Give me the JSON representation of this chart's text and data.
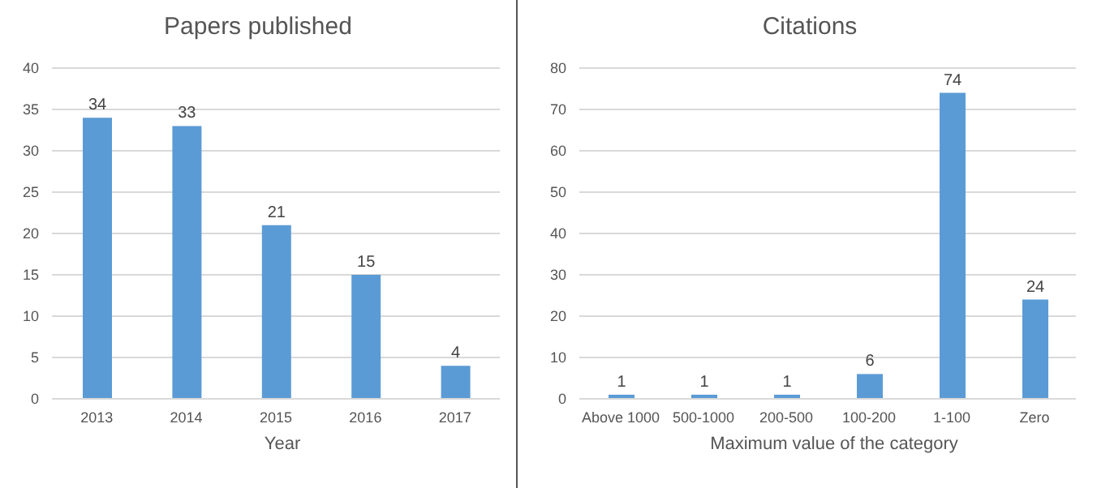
{
  "chart_data": [
    {
      "type": "bar",
      "title": "Papers published",
      "xlabel": "Year",
      "categories": [
        "2013",
        "2014",
        "2015",
        "2016",
        "2017"
      ],
      "values": [
        34,
        33,
        21,
        15,
        4
      ],
      "color": "#5b9bd5",
      "ylim": [
        0,
        40
      ],
      "yticks": [
        0,
        5,
        10,
        15,
        20,
        25,
        30,
        35,
        40
      ],
      "grid": "y",
      "data_labels": true
    },
    {
      "type": "bar",
      "title": "Citations",
      "xlabel": "Maximum value of the category",
      "categories": [
        "Above 1000",
        "500-1000",
        "200-500",
        "100-200",
        "1-100",
        "Zero"
      ],
      "values": [
        1,
        1,
        1,
        6,
        74,
        24
      ],
      "color": "#5b9bd5",
      "ylim": [
        0,
        80
      ],
      "yticks": [
        0,
        10,
        20,
        30,
        40,
        50,
        60,
        70,
        80
      ],
      "grid": "y",
      "data_labels": true
    }
  ]
}
